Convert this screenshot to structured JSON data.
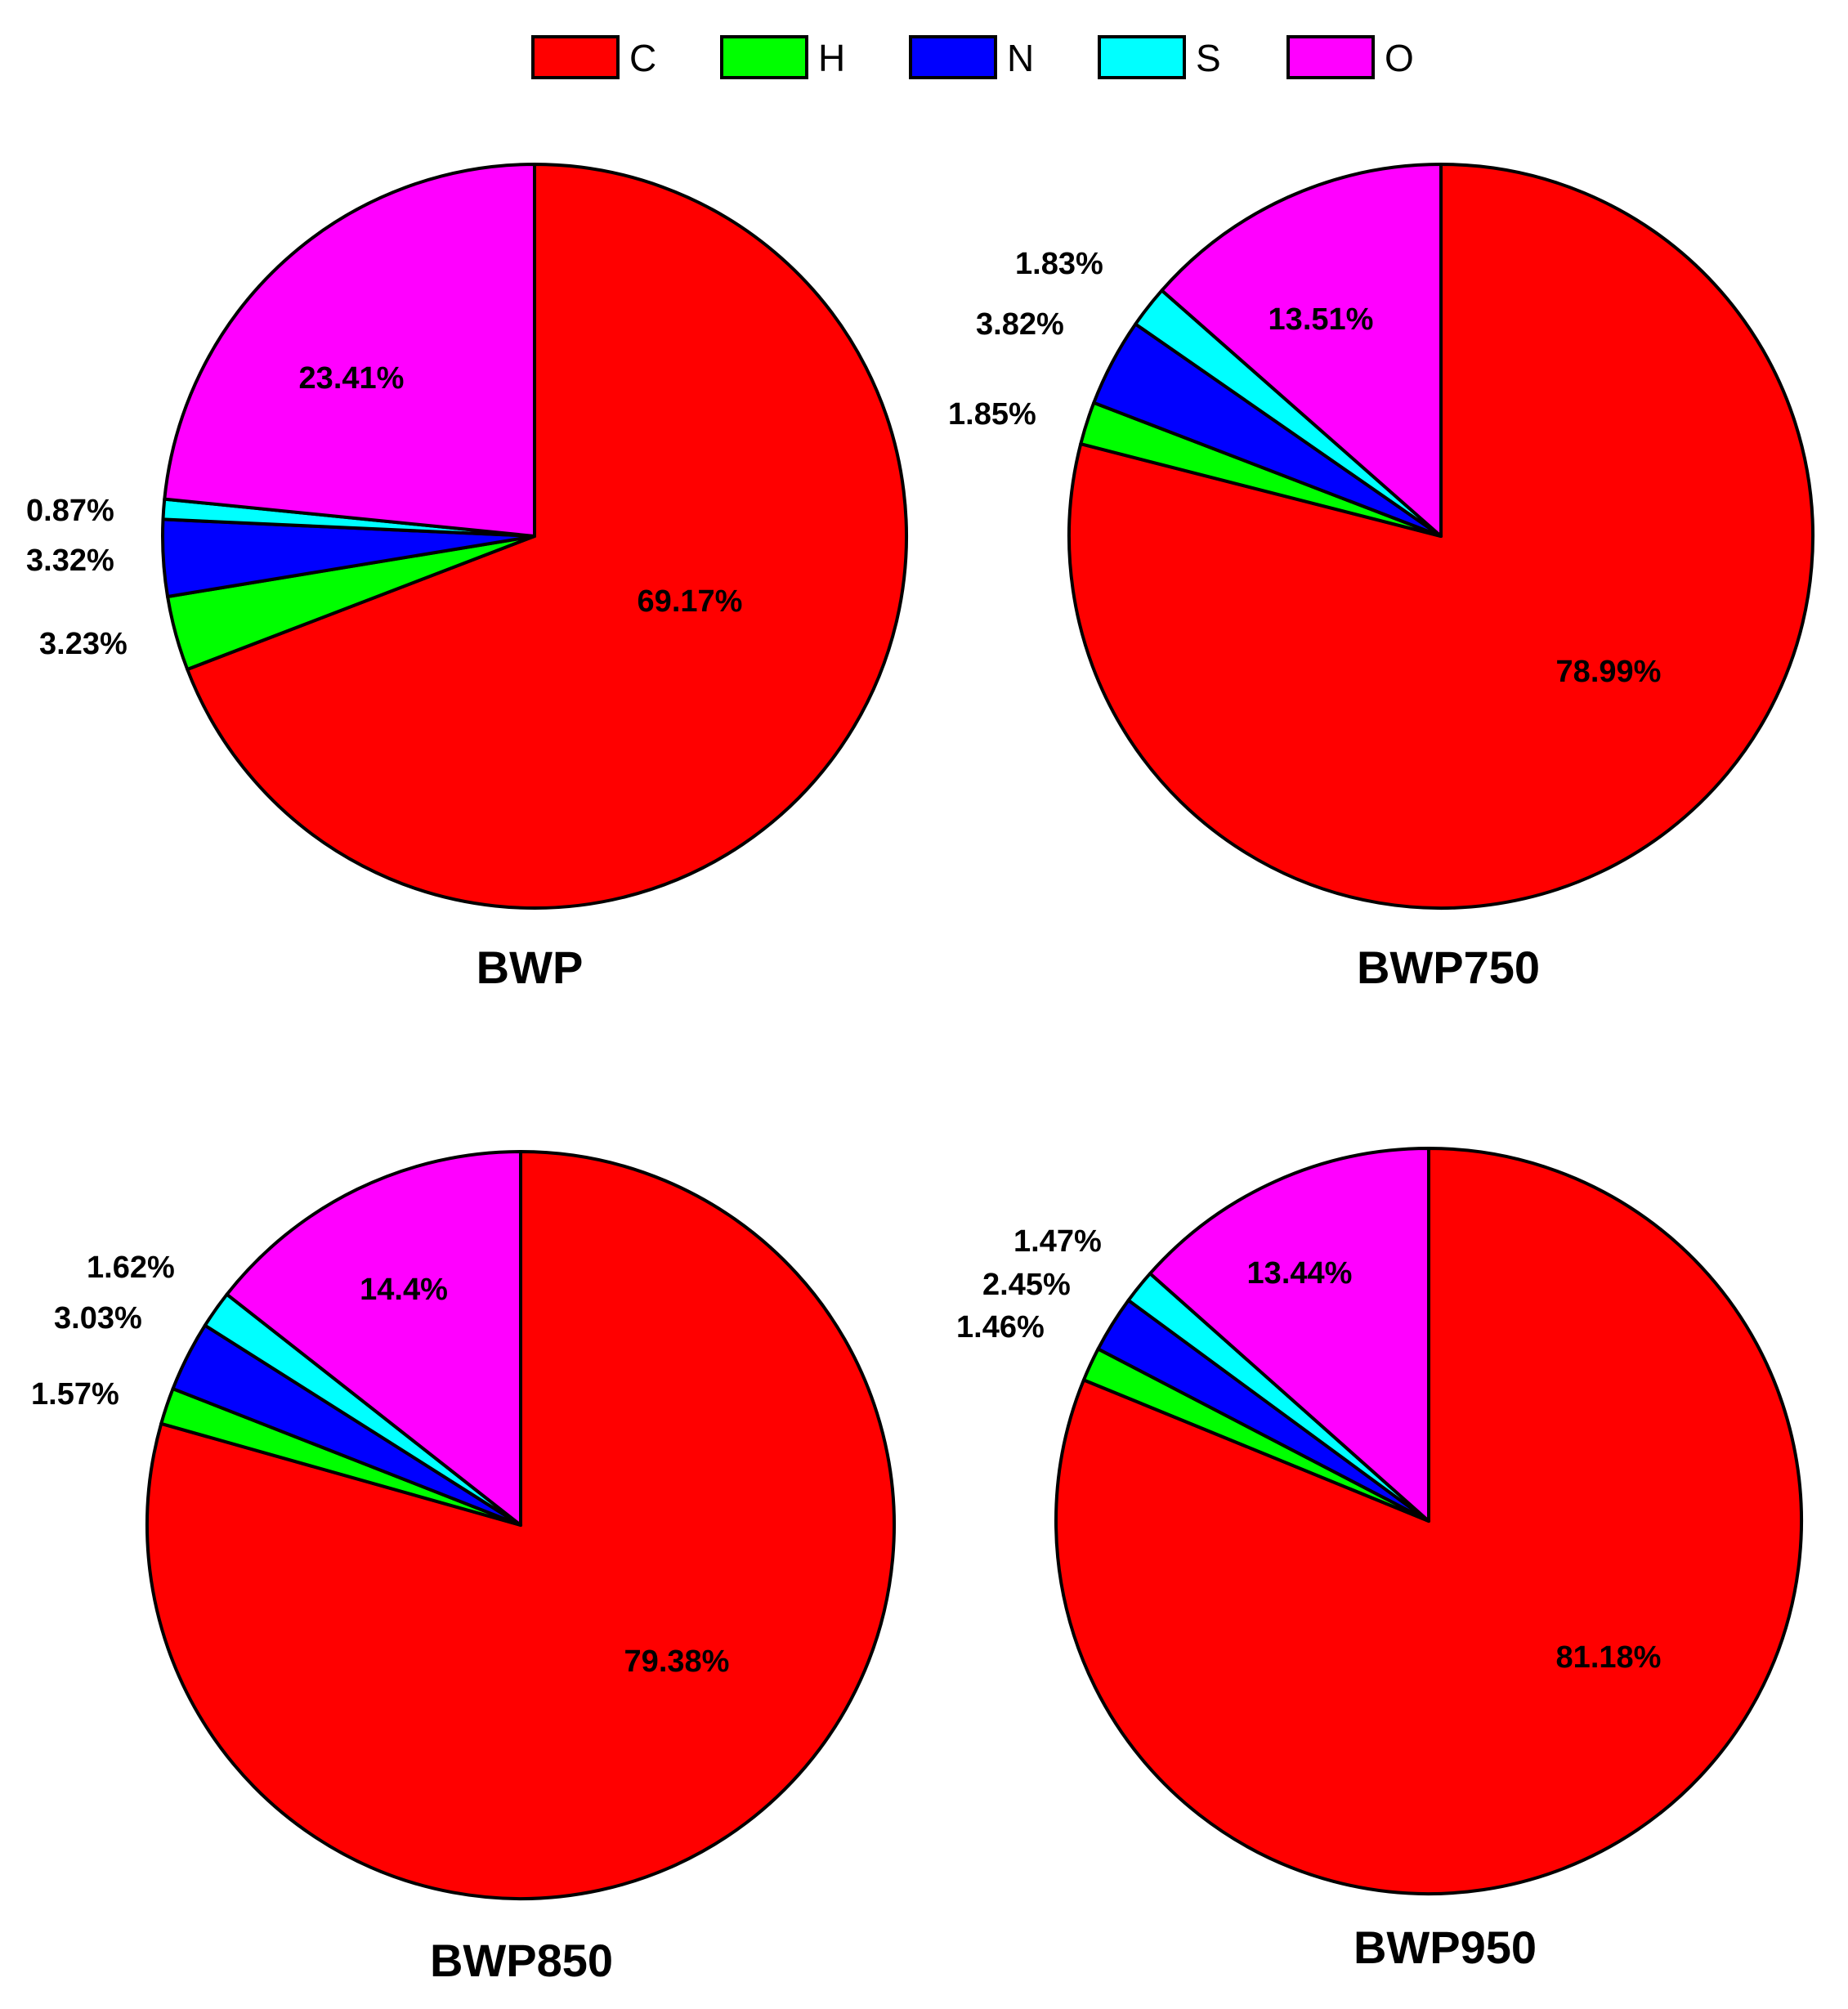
{
  "legend": [
    {
      "label": "C",
      "color": "#ff0000"
    },
    {
      "label": "H",
      "color": "#00ff00"
    },
    {
      "label": "N",
      "color": "#0000ff"
    },
    {
      "label": "S",
      "color": "#00ffff"
    },
    {
      "label": "O",
      "color": "#ff00ff"
    }
  ],
  "chart_data": [
    {
      "type": "pie",
      "title": "BWP",
      "slices": [
        {
          "name": "C",
          "value": 69.17,
          "label": "69.17%"
        },
        {
          "name": "H",
          "value": 3.23,
          "label": "3.23%"
        },
        {
          "name": "N",
          "value": 3.32,
          "label": "3.32%"
        },
        {
          "name": "S",
          "value": 0.87,
          "label": "0.87%"
        },
        {
          "name": "O",
          "value": 23.41,
          "label": "23.41%"
        }
      ]
    },
    {
      "type": "pie",
      "title": "BWP750",
      "slices": [
        {
          "name": "C",
          "value": 78.99,
          "label": "78.99%"
        },
        {
          "name": "H",
          "value": 1.85,
          "label": "1.85%"
        },
        {
          "name": "N",
          "value": 3.82,
          "label": "3.82%"
        },
        {
          "name": "S",
          "value": 1.83,
          "label": "1.83%"
        },
        {
          "name": "O",
          "value": 13.51,
          "label": "13.51%"
        }
      ]
    },
    {
      "type": "pie",
      "title": "BWP850",
      "slices": [
        {
          "name": "C",
          "value": 79.38,
          "label": "79.38%"
        },
        {
          "name": "H",
          "value": 1.57,
          "label": "1.57%"
        },
        {
          "name": "N",
          "value": 3.03,
          "label": "3.03%"
        },
        {
          "name": "S",
          "value": 1.62,
          "label": "1.62%"
        },
        {
          "name": "O",
          "value": 14.4,
          "label": "14.4%"
        }
      ]
    },
    {
      "type": "pie",
      "title": "BWP950",
      "slices": [
        {
          "name": "C",
          "value": 81.18,
          "label": "81.18%"
        },
        {
          "name": "H",
          "value": 1.46,
          "label": "1.46%"
        },
        {
          "name": "N",
          "value": 2.45,
          "label": "2.45%"
        },
        {
          "name": "S",
          "value": 1.47,
          "label": "1.47%"
        },
        {
          "name": "O",
          "value": 13.44,
          "label": "13.44%"
        }
      ]
    }
  ]
}
